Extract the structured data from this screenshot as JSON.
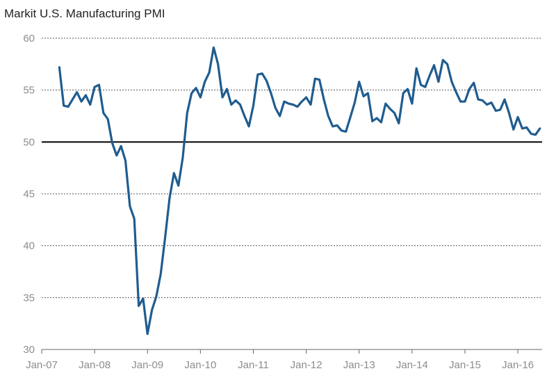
{
  "chart_data": {
    "type": "line",
    "title": "Markit U.S. Manufacturing PMI",
    "xlabel": "",
    "ylabel": "",
    "ylim": [
      30,
      60
    ],
    "yticks": [
      30,
      35,
      40,
      45,
      50,
      55,
      60
    ],
    "reference_line": 50,
    "x_tick_labels": [
      "Jan-07",
      "Jan-08",
      "Jan-09",
      "Jan-10",
      "Jan-11",
      "Jan-12",
      "Jan-13",
      "Jan-14",
      "Jan-15",
      "Jan-16"
    ],
    "x_start": "May-07",
    "x_end": "Jun-16",
    "line_color": "#1f5c8f",
    "series": [
      {
        "name": "Markit U.S. Manufacturing PMI",
        "values": [
          57.2,
          53.5,
          53.4,
          54.1,
          54.8,
          53.9,
          54.5,
          53.6,
          55.3,
          55.5,
          52.8,
          52.2,
          49.9,
          48.7,
          49.6,
          48.2,
          43.8,
          42.6,
          34.2,
          34.9,
          31.5,
          33.8,
          35.1,
          37.3,
          40.8,
          44.6,
          47.0,
          45.8,
          48.5,
          52.8,
          54.7,
          55.2,
          54.3,
          55.8,
          56.7,
          59.1,
          57.5,
          54.3,
          55.1,
          53.6,
          54.0,
          53.6,
          52.5,
          51.5,
          53.5,
          56.5,
          56.6,
          55.9,
          54.7,
          53.3,
          52.5,
          53.9,
          53.7,
          53.6,
          53.4,
          53.9,
          54.3,
          53.6,
          56.1,
          56.0,
          54.1,
          52.5,
          51.5,
          51.6,
          51.1,
          51.0,
          52.4,
          53.8,
          55.8,
          54.4,
          54.7,
          52.0,
          52.3,
          51.9,
          53.7,
          53.2,
          52.8,
          51.8,
          54.7,
          55.1,
          53.7,
          57.1,
          55.5,
          55.3,
          56.4,
          57.4,
          55.8,
          57.9,
          57.5,
          55.8,
          54.8,
          53.9,
          53.9,
          55.1,
          55.7,
          54.1,
          54.0,
          53.6,
          53.8,
          53.0,
          53.1,
          54.1,
          52.8,
          51.2,
          52.4,
          51.3,
          51.4,
          50.8,
          50.7,
          51.3
        ]
      }
    ]
  }
}
